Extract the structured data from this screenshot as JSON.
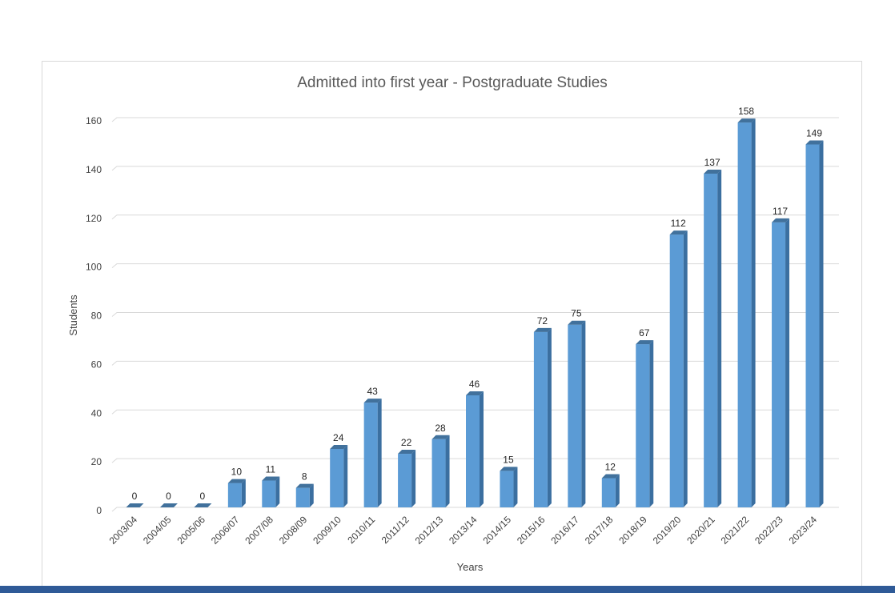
{
  "colors": {
    "bar_front": "#5b9bd5",
    "bar_side": "#3b6fa0",
    "bar_top": "#41719c",
    "grid": "#d9d9d9",
    "bottom_bar": "#2f5a97"
  },
  "chart_data": {
    "type": "bar",
    "title": "Admitted into first year - Postgraduate Studies",
    "xlabel": "Years",
    "ylabel": "Students",
    "ylim": [
      0,
      160
    ],
    "yticks": [
      0,
      20,
      40,
      60,
      80,
      100,
      120,
      140,
      160
    ],
    "grid": true,
    "legend": "none",
    "categories": [
      "2003/04",
      "2004/05",
      "2005/06",
      "2006/07",
      "2007/08",
      "2008/09",
      "2009/10",
      "2010/11",
      "2011/12",
      "2012/13",
      "2013/14",
      "2014/15",
      "2015/16",
      "2016/17",
      "2017/18",
      "2018/19",
      "2019/20",
      "2020/21",
      "2021/22",
      "2022/23",
      "2023/24"
    ],
    "values": [
      0,
      0,
      0,
      10,
      11,
      8,
      24,
      43,
      22,
      28,
      46,
      15,
      72,
      75,
      12,
      67,
      112,
      137,
      158,
      117,
      149
    ]
  }
}
